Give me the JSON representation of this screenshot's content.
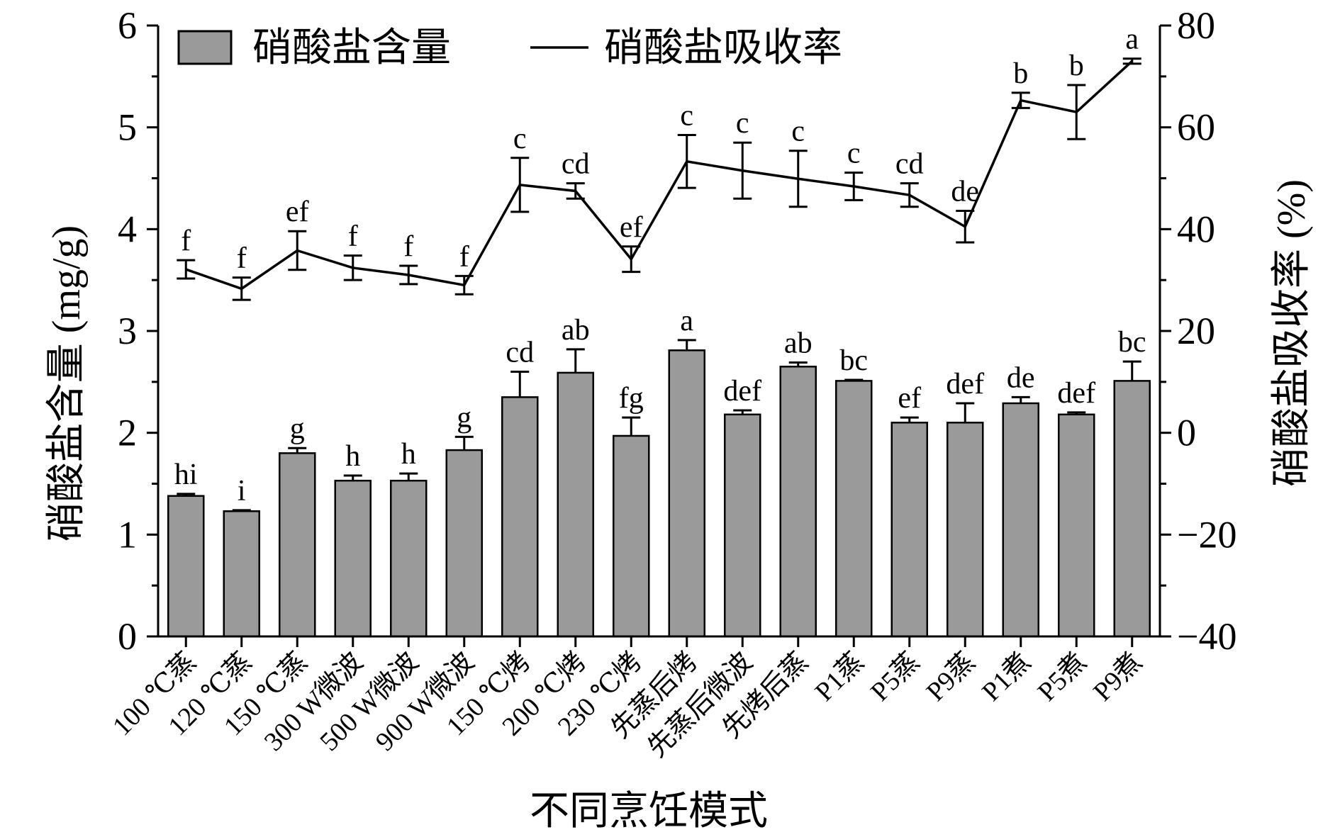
{
  "chart_data": {
    "type": "bar+line",
    "xlabel": "不同烹饪模式",
    "ylabel_left": "硝酸盐含量 (mg/g)",
    "ylabel_right": "硝酸盐吸收率 (%)",
    "ylim_left": [
      0,
      6
    ],
    "ylim_right": [
      -40,
      80
    ],
    "yticks_left": [
      0,
      1,
      2,
      3,
      4,
      5,
      6
    ],
    "yticks_right": [
      -40,
      -20,
      0,
      20,
      40,
      60,
      80
    ],
    "grid": false,
    "legend_position": "top-left",
    "categories": [
      "100 ℃蒸",
      "120 ℃蒸",
      "150 ℃蒸",
      "300 W微波",
      "500 W微波",
      "900 W微波",
      "150 ℃烤",
      "200 ℃烤",
      "230 ℃烤",
      "先蒸后烤",
      "先蒸后微波",
      "先烤后蒸",
      "P1蒸",
      "P5蒸",
      "P9蒸",
      "P1煮",
      "P5煮",
      "P9煮"
    ],
    "series": [
      {
        "name": "硝酸盐含量",
        "type": "bar",
        "axis": "left",
        "values": [
          1.38,
          1.23,
          1.8,
          1.53,
          1.53,
          1.83,
          2.35,
          2.59,
          1.97,
          2.81,
          2.18,
          2.65,
          2.51,
          2.1,
          2.1,
          2.29,
          2.18,
          2.51
        ],
        "errors": [
          0.02,
          0.01,
          0.05,
          0.05,
          0.07,
          0.13,
          0.25,
          0.23,
          0.18,
          0.1,
          0.04,
          0.04,
          0.01,
          0.05,
          0.19,
          0.06,
          0.02,
          0.19
        ],
        "letters": [
          "hi",
          "i",
          "g",
          "h",
          "h",
          "g",
          "cd",
          "ab",
          "fg",
          "a",
          "def",
          "ab",
          "bc",
          "ef",
          "def",
          "de",
          "def",
          "bc"
        ]
      },
      {
        "name": "硝酸盐吸收率",
        "type": "line",
        "axis": "right",
        "values": [
          32.1,
          28.3,
          35.8,
          32.4,
          31.0,
          29.0,
          48.7,
          47.5,
          34.1,
          53.3,
          51.5,
          49.9,
          48.4,
          46.7,
          40.5,
          65.3,
          63.0,
          73.0
        ],
        "errors": [
          1.8,
          2.2,
          3.8,
          2.4,
          1.8,
          1.8,
          5.3,
          1.5,
          2.5,
          5.2,
          5.5,
          5.5,
          2.7,
          2.3,
          3.1,
          1.5,
          5.3,
          0.5
        ],
        "letters": [
          "f",
          "f",
          "ef",
          "f",
          "f",
          "f",
          "c",
          "cd",
          "ef",
          "c",
          "c",
          "c",
          "c",
          "cd",
          "de",
          "b",
          "b",
          "a"
        ]
      }
    ]
  }
}
